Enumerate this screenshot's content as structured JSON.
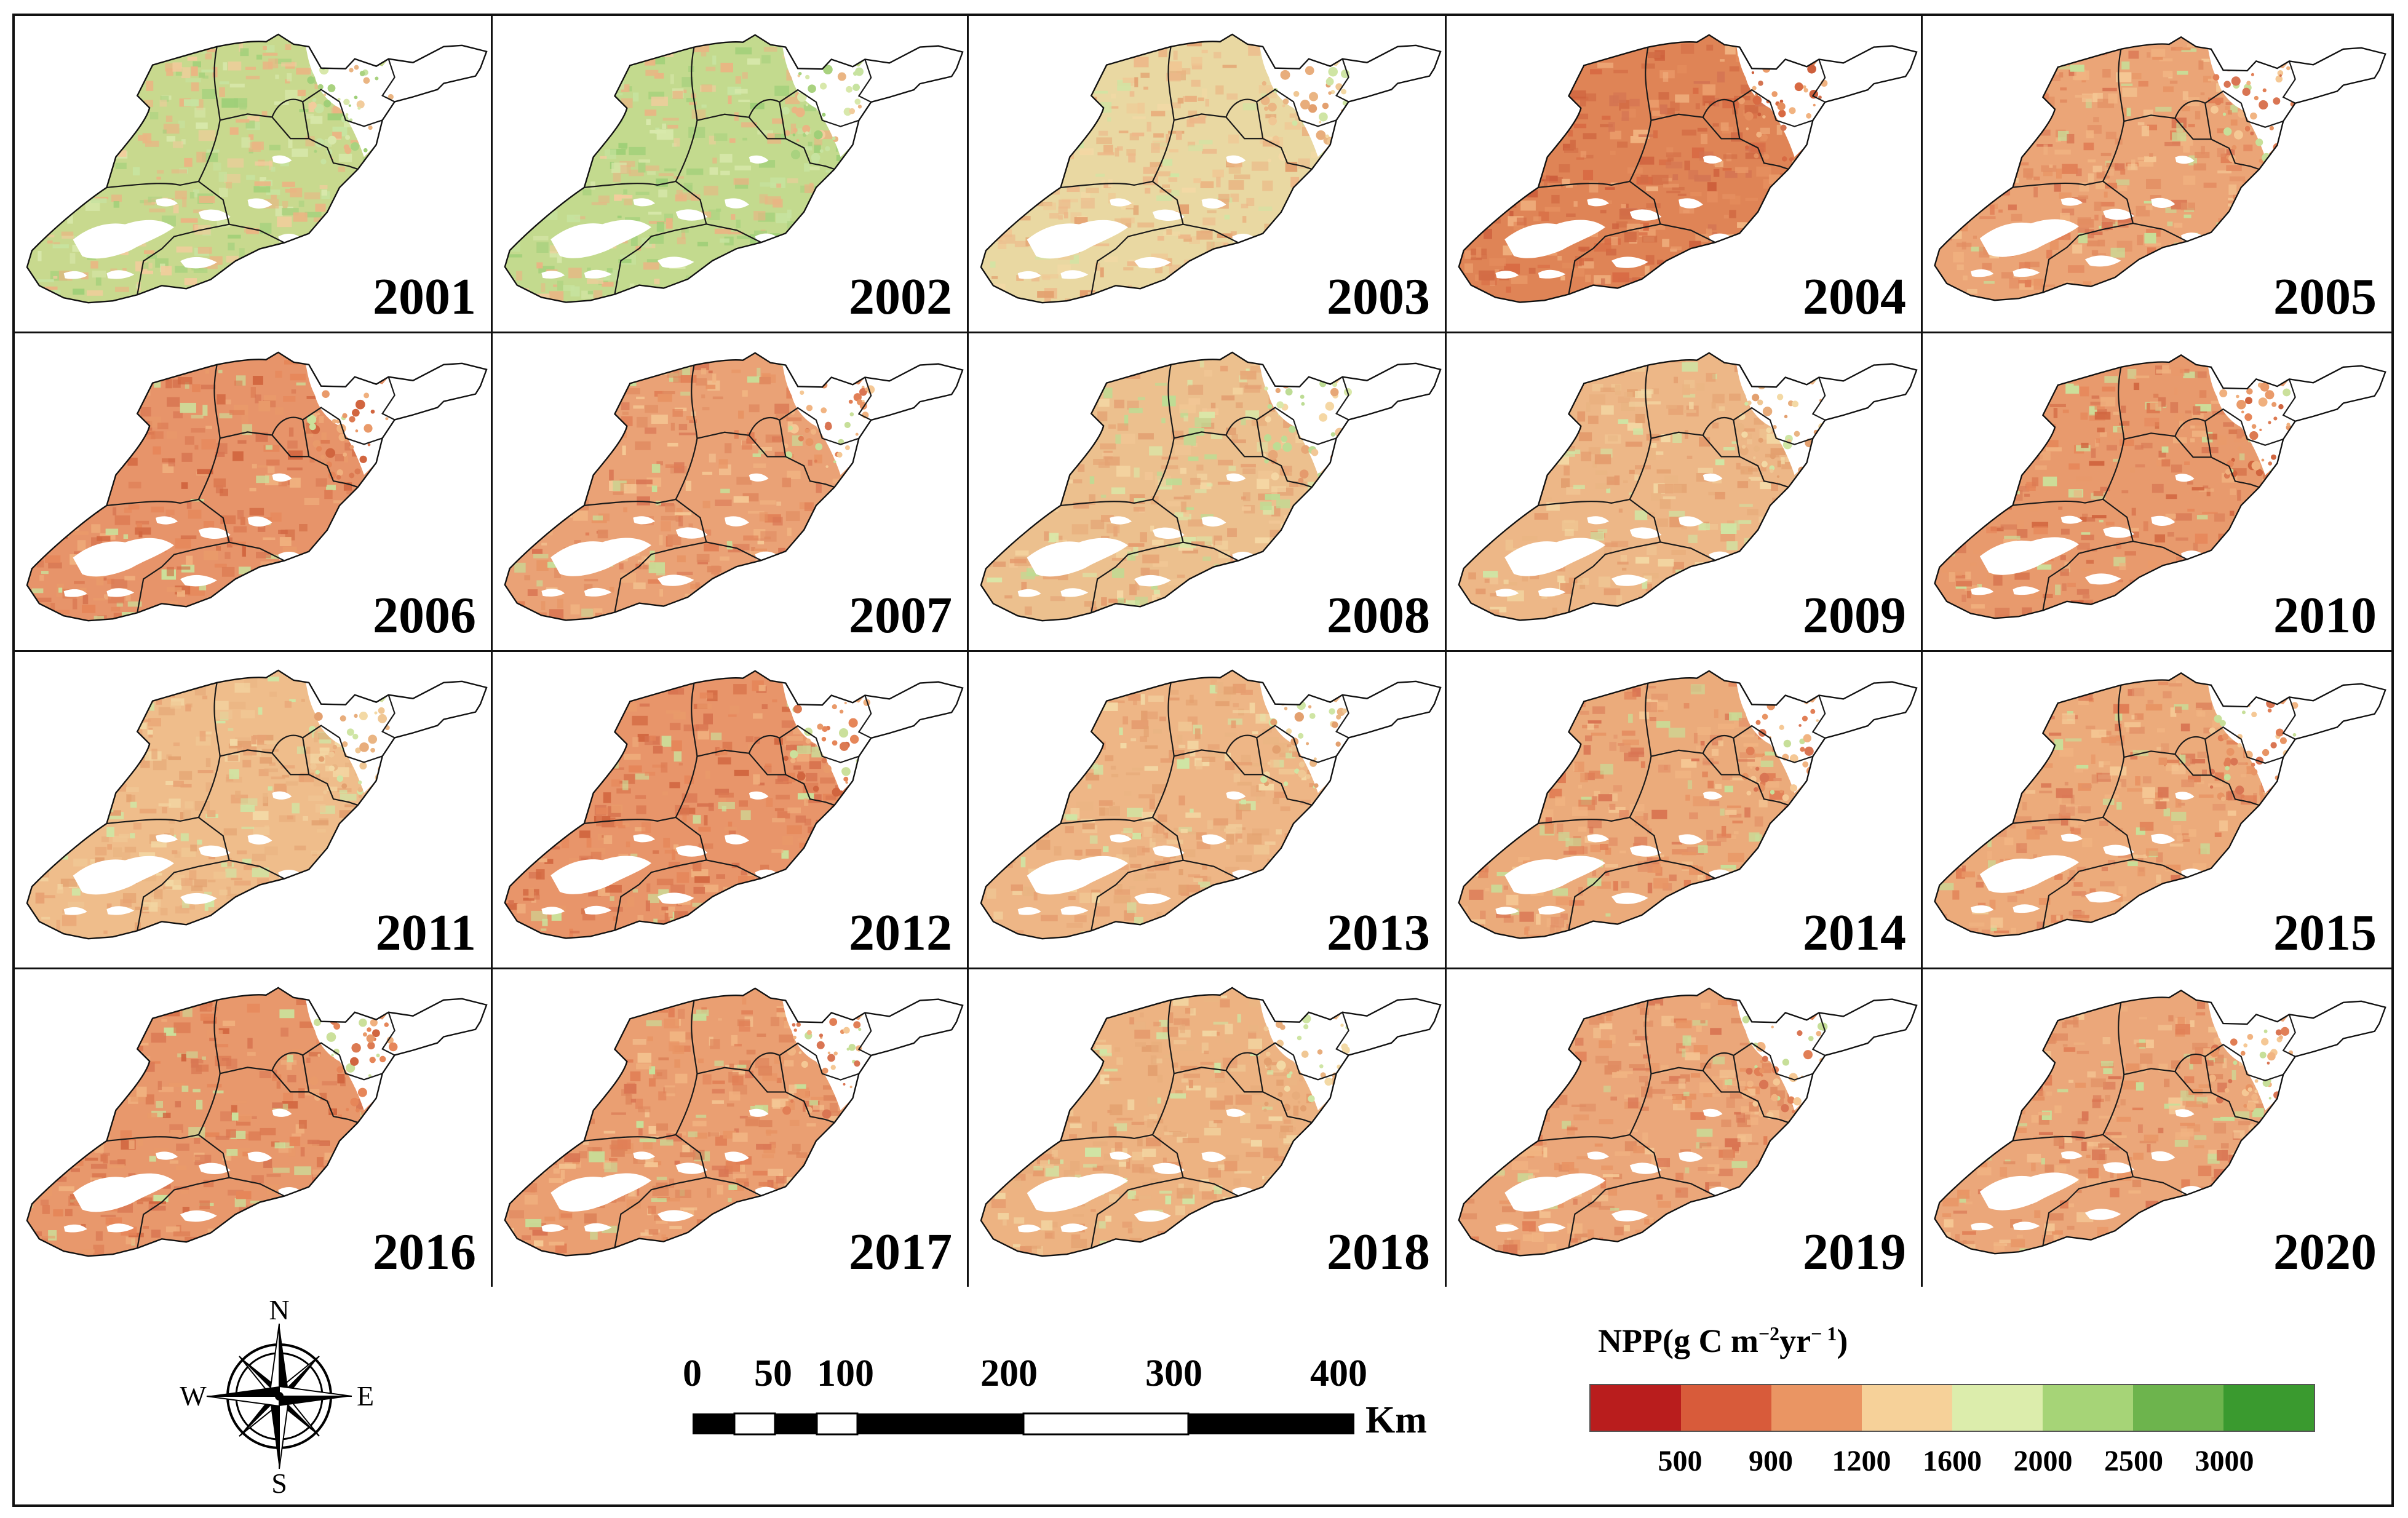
{
  "maps": [
    {
      "year": "2001",
      "base": "#c8d98e",
      "spot": "#eab583",
      "palette": "green"
    },
    {
      "year": "2002",
      "base": "#c3da8e",
      "spot": "#e9b584",
      "palette": "green"
    },
    {
      "year": "2003",
      "base": "#e9d8a2",
      "spot": "#edb889",
      "palette": "light"
    },
    {
      "year": "2004",
      "base": "#df8456",
      "spot": "#d26c45",
      "palette": "red"
    },
    {
      "year": "2005",
      "base": "#eba577",
      "spot": "#e28d62",
      "palette": "orange"
    },
    {
      "year": "2006",
      "base": "#e7946a",
      "spot": "#d87652",
      "palette": "redorange"
    },
    {
      "year": "2007",
      "base": "#eaa276",
      "spot": "#e08a60",
      "palette": "orange"
    },
    {
      "year": "2008",
      "base": "#ecc08e",
      "spot": "#e4a274",
      "palette": "lightgreen"
    },
    {
      "year": "2009",
      "base": "#edb787",
      "spot": "#e49b6d",
      "palette": "light"
    },
    {
      "year": "2010",
      "base": "#e89a6d",
      "spot": "#d97a55",
      "palette": "redorange"
    },
    {
      "year": "2011",
      "base": "#efbd8b",
      "spot": "#e8a374",
      "palette": "light"
    },
    {
      "year": "2012",
      "base": "#e8956a",
      "spot": "#d87450",
      "palette": "redorange"
    },
    {
      "year": "2013",
      "base": "#eeb686",
      "spot": "#e69e70",
      "palette": "light"
    },
    {
      "year": "2014",
      "base": "#ebab7b",
      "spot": "#e39168",
      "palette": "orange"
    },
    {
      "year": "2015",
      "base": "#ecab7b",
      "spot": "#e39369",
      "palette": "orange"
    },
    {
      "year": "2016",
      "base": "#e8986c",
      "spot": "#d97854",
      "palette": "redorange"
    },
    {
      "year": "2017",
      "base": "#ea9f72",
      "spot": "#de855b",
      "palette": "orange"
    },
    {
      "year": "2018",
      "base": "#edb382",
      "spot": "#e59a6c",
      "palette": "light"
    },
    {
      "year": "2019",
      "base": "#eba77a",
      "spot": "#e08c62",
      "palette": "orange"
    },
    {
      "year": "2020",
      "base": "#eba77a",
      "spot": "#e08c62",
      "palette": "orange"
    }
  ],
  "compass": {
    "n": "N",
    "s": "S",
    "e": "E",
    "w": "W"
  },
  "scale_bar": {
    "ticks": [
      "0",
      "50",
      "100",
      "200",
      "300",
      "400"
    ],
    "unit": "Km"
  },
  "legend": {
    "title_main": "NPP(g C m",
    "title_sup1": "−2",
    "title_mid": "yr",
    "title_sup2": "− 1",
    "title_end": ")",
    "colors": [
      "#b91d1d",
      "#d85b3a",
      "#ea9563",
      "#f6d199",
      "#dcedac",
      "#a6d477",
      "#6db44d",
      "#3a9a2f"
    ],
    "ticks": [
      "500",
      "900",
      "1200",
      "1600",
      "2000",
      "2500",
      "3000"
    ]
  }
}
